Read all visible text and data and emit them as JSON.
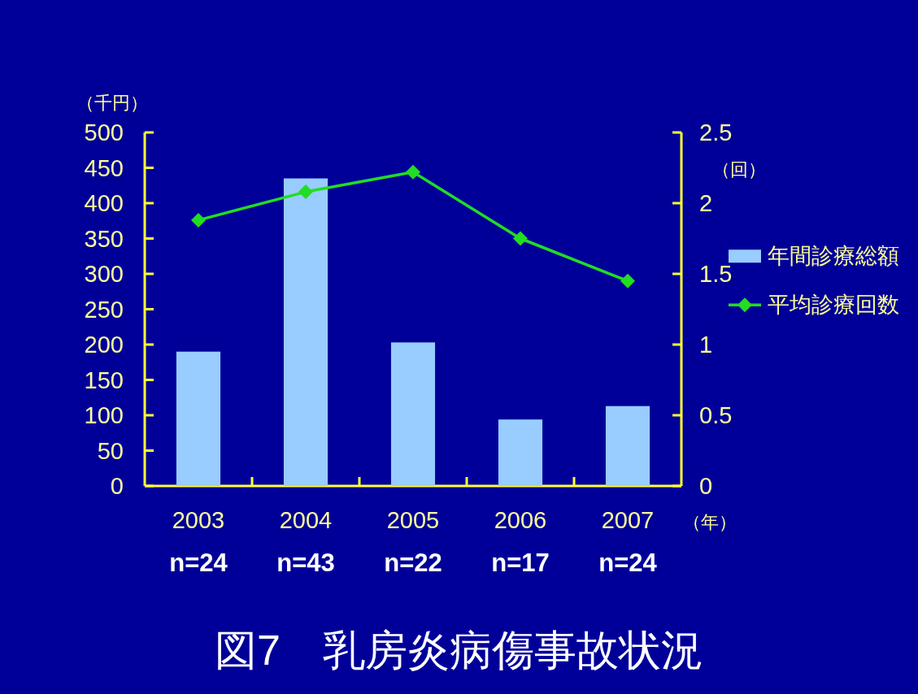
{
  "chart_data": {
    "type": "bar",
    "title": "図7　乳房炎病傷事故状況",
    "xlabel": "（年）",
    "ylabel": "（千円）",
    "y2label": "（回）",
    "categories": [
      "2003",
      "2004",
      "2005",
      "2006",
      "2007"
    ],
    "series": [
      {
        "name": "年間診療総額",
        "color": "#99ccff",
        "values": [
          190,
          435,
          203,
          94,
          113
        ]
      },
      {
        "name": "平均診療回数",
        "type": "line",
        "axis": "y2",
        "color": "#22dd22",
        "values": [
          1.88,
          2.08,
          2.22,
          1.75,
          1.45
        ]
      }
    ],
    "ylim": [
      0,
      500
    ],
    "yticks": [
      0,
      50,
      100,
      150,
      200,
      250,
      300,
      350,
      400,
      450,
      500
    ],
    "y2lim": [
      0,
      2.5
    ],
    "y2ticks": [
      0,
      0.5,
      1,
      1.5,
      2,
      2.5
    ],
    "annotations": [
      "n=24",
      "n=43",
      "n=22",
      "n=17",
      "n=24"
    ],
    "marker": "diamond",
    "legend": "right"
  }
}
